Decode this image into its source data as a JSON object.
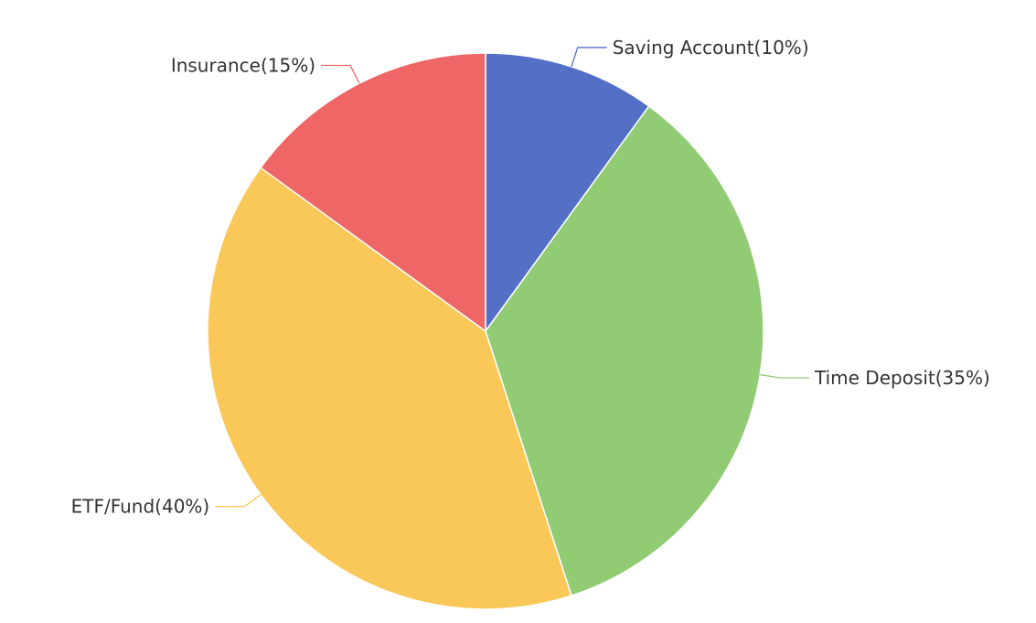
{
  "chart_data": {
    "type": "pie",
    "start_angle_deg": 0,
    "direction": "clockwise",
    "slices": [
      {
        "label": "Saving Account(10%)",
        "value": 10,
        "color": "#5470c6"
      },
      {
        "label": "Time Deposit(35%)",
        "value": 35,
        "color": "#91cc75"
      },
      {
        "label": "ETF/Fund(40%)",
        "value": 40,
        "color": "#fac858"
      },
      {
        "label": "Insurance(15%)",
        "value": 15,
        "color": "#ee6666"
      }
    ]
  }
}
